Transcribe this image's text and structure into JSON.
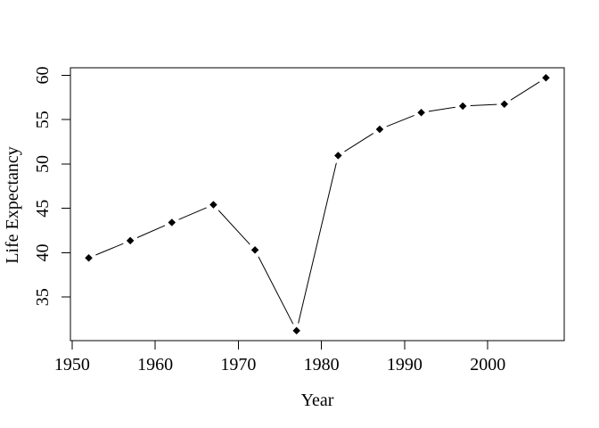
{
  "figure": {
    "background": "#ffffff",
    "color": "#000000"
  },
  "chart_data": {
    "type": "line",
    "title": "",
    "xlabel": "Year",
    "ylabel": "Life Expectancy",
    "x": [
      1952,
      1957,
      1962,
      1967,
      1972,
      1977,
      1982,
      1987,
      1992,
      1997,
      2002,
      2007
    ],
    "y": [
      39.417,
      41.366,
      43.415,
      45.415,
      40.317,
      31.22,
      50.957,
      53.914,
      55.803,
      56.534,
      56.752,
      59.723
    ],
    "x_ticks": [
      "1950",
      "1960",
      "1970",
      "1980",
      "1990",
      "2000"
    ],
    "x_tick_values": [
      1950,
      1960,
      1970,
      1980,
      1990,
      2000
    ],
    "y_ticks": [
      "35",
      "40",
      "45",
      "50",
      "55",
      "60"
    ],
    "y_tick_values": [
      35,
      40,
      45,
      50,
      55,
      60
    ],
    "xlim": [
      1949.8,
      2009.2
    ],
    "ylim": [
      30.1,
      60.85
    ],
    "grid": false,
    "legend": null,
    "marker": "filled-diamond",
    "line_style": "solid-segments-with-gaps-at-points"
  }
}
